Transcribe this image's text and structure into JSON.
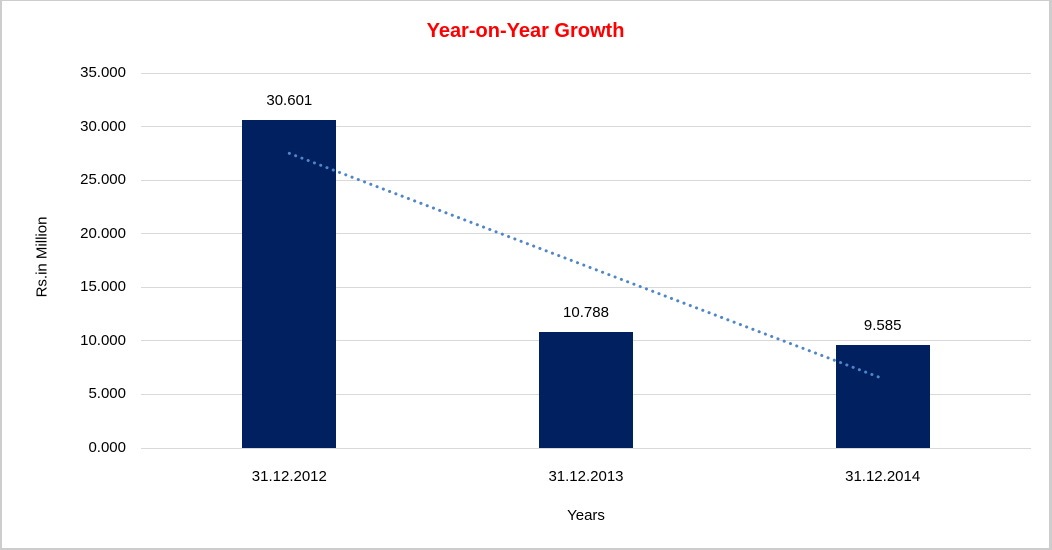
{
  "window": {
    "background": "#ffffff",
    "border_color": "#cdcdcd"
  },
  "chart_data": {
    "type": "bar",
    "title": "Year-on-Year Growth",
    "title_color": "#ff0000",
    "xlabel": "Years",
    "ylabel": "Rs.in Million",
    "categories": [
      "31.12.2012",
      "31.12.2013",
      "31.12.2014"
    ],
    "values": [
      30.601,
      10.788,
      9.585
    ],
    "data_labels": [
      "30.601",
      "10.788",
      "9.585"
    ],
    "bar_color": "#002060",
    "ylim": [
      0,
      35
    ],
    "ytick_step": 5,
    "ytick_labels": [
      "0.000",
      "5.000",
      "10.000",
      "15.000",
      "20.000",
      "25.000",
      "30.000",
      "35.000"
    ],
    "grid": true,
    "gridline_color": "#d9d9d9",
    "legend": "none",
    "trendline": {
      "type": "linear",
      "start_value": 27.5,
      "end_value": 6.48,
      "color": "#4e86c8",
      "style": "dotted"
    }
  }
}
